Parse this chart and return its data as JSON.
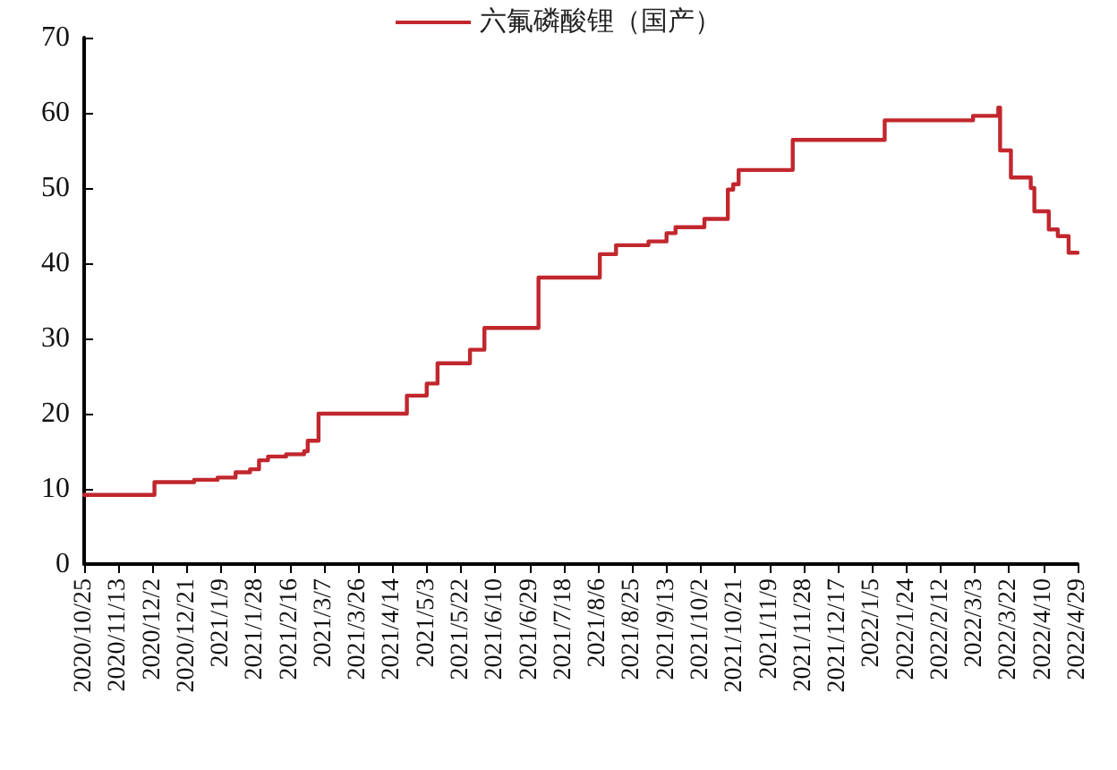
{
  "chart_data": {
    "type": "step",
    "legend": "top",
    "grid": false,
    "marker": "none",
    "line_style": "solid",
    "x": [
      "2020-10-25",
      "2020-12-03",
      "2020-12-25",
      "2021-01-07",
      "2021-01-17",
      "2021-01-25",
      "2021-01-30",
      "2021-02-04",
      "2021-02-14",
      "2021-02-24",
      "2021-02-26",
      "2021-03-04",
      "2021-04-22",
      "2021-05-03",
      "2021-05-09",
      "2021-05-27",
      "2021-06-04",
      "2021-07-04",
      "2021-08-07",
      "2021-08-16",
      "2021-09-03",
      "2021-09-13",
      "2021-09-18",
      "2021-10-04",
      "2021-10-17",
      "2021-10-20",
      "2021-10-23",
      "2021-11-22",
      "2022-01-12",
      "2022-03-02",
      "2022-03-16",
      "2022-03-17",
      "2022-03-23",
      "2022-04-03",
      "2022-04-05",
      "2022-04-13",
      "2022-04-18",
      "2022-04-24",
      "2022-04-29"
    ],
    "series": [
      {
        "name": "六氟磷酸锂（国产）",
        "color": "#c1272d",
        "values": [
          9.2,
          10.9,
          11.2,
          11.5,
          12.2,
          12.6,
          13.8,
          14.3,
          14.6,
          15.0,
          16.4,
          20.0,
          22.4,
          24.0,
          26.7,
          28.5,
          31.4,
          38.1,
          41.2,
          42.4,
          42.9,
          44.0,
          44.8,
          45.9,
          49.8,
          50.5,
          52.4,
          56.4,
          59.0,
          59.6,
          60.7,
          55.0,
          51.4,
          50.0,
          46.9,
          44.5,
          43.6,
          41.4,
          41.4
        ]
      }
    ],
    "xlim": [
      "2020-10-25",
      "2022-04-29"
    ],
    "xticks": [
      {
        "value": "2020-10-25",
        "label": "2020/10/25"
      },
      {
        "value": "2020-11-13",
        "label": "2020/11/13"
      },
      {
        "value": "2020-12-02",
        "label": "2020/12/2"
      },
      {
        "value": "2020-12-21",
        "label": "2020/12/21"
      },
      {
        "value": "2021-01-09",
        "label": "2021/1/9"
      },
      {
        "value": "2021-01-28",
        "label": "2021/1/28"
      },
      {
        "value": "2021-02-16",
        "label": "2021/2/16"
      },
      {
        "value": "2021-03-07",
        "label": "2021/3/7"
      },
      {
        "value": "2021-03-26",
        "label": "2021/3/26"
      },
      {
        "value": "2021-04-14",
        "label": "2021/4/14"
      },
      {
        "value": "2021-05-03",
        "label": "2021/5/3"
      },
      {
        "value": "2021-05-22",
        "label": "2021/5/22"
      },
      {
        "value": "2021-06-10",
        "label": "2021/6/10"
      },
      {
        "value": "2021-06-29",
        "label": "2021/6/29"
      },
      {
        "value": "2021-07-18",
        "label": "2021/7/18"
      },
      {
        "value": "2021-08-06",
        "label": "2021/8/6"
      },
      {
        "value": "2021-08-25",
        "label": "2021/8/25"
      },
      {
        "value": "2021-09-13",
        "label": "2021/9/13"
      },
      {
        "value": "2021-10-02",
        "label": "2021/10/2"
      },
      {
        "value": "2021-10-21",
        "label": "2021/10/21"
      },
      {
        "value": "2021-11-09",
        "label": "2021/11/9"
      },
      {
        "value": "2021-11-28",
        "label": "2021/11/28"
      },
      {
        "value": "2021-12-17",
        "label": "2021/12/17"
      },
      {
        "value": "2022-01-05",
        "label": "2022/1/5"
      },
      {
        "value": "2022-01-24",
        "label": "2022/1/24"
      },
      {
        "value": "2022-02-12",
        "label": "2022/2/12"
      },
      {
        "value": "2022-03-03",
        "label": "2022/3/3"
      },
      {
        "value": "2022-03-22",
        "label": "2022/3/22"
      },
      {
        "value": "2022-04-10",
        "label": "2022/4/10"
      },
      {
        "value": "2022-04-29",
        "label": "2022/4/29"
      }
    ],
    "ylim": [
      0,
      70
    ],
    "yticks": [
      0,
      10,
      20,
      30,
      40,
      50,
      60,
      70
    ]
  }
}
